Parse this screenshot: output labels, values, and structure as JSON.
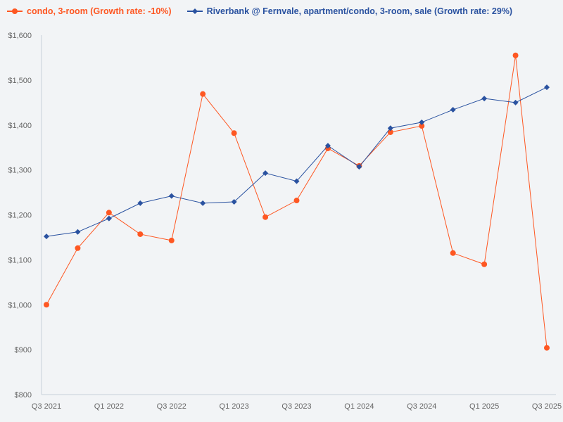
{
  "chart_data": {
    "type": "line",
    "categories": [
      "Q3 2021",
      "Q4 2021",
      "Q1 2022",
      "Q2 2022",
      "Q3 2022",
      "Q4 2022",
      "Q1 2023",
      "Q2 2023",
      "Q3 2023",
      "Q4 2023",
      "Q1 2024",
      "Q2 2024",
      "Q3 2024",
      "Q4 2024",
      "Q1 2025",
      "Q2 2025",
      "Q3 2025"
    ],
    "x_tick_labels": [
      "Q3 2021",
      "Q1 2022",
      "Q3 2022",
      "Q1 2023",
      "Q3 2023",
      "Q1 2024",
      "Q3 2024",
      "Q1 2025",
      "Q3 2025"
    ],
    "y_tick_labels": [
      "$800",
      "$900",
      "$1,000",
      "$1,100",
      "$1,200",
      "$1,300",
      "$1,400",
      "$1,500",
      "$1,600"
    ],
    "ylim": [
      800,
      1600
    ],
    "grid": false,
    "legend_position": "top-left",
    "series": [
      {
        "name": "condo, 3-room (Growth rate: -10%)",
        "color": "#fe5722",
        "marker": "circle",
        "values": [
          1000,
          1126,
          1205,
          1157,
          1143,
          1469,
          1382,
          1195,
          1232,
          1348,
          1309,
          1384,
          1398,
          1115,
          1090,
          1555,
          904
        ]
      },
      {
        "name": "Riverbank @ Fernvale, apartment/condo, 3-room, sale (Growth rate: 29%)",
        "color": "#2a52a0",
        "marker": "diamond",
        "values": [
          1152,
          1162,
          1192,
          1226,
          1242,
          1226,
          1229,
          1293,
          1275,
          1354,
          1307,
          1393,
          1406,
          1434,
          1459,
          1450,
          1484
        ]
      }
    ]
  }
}
